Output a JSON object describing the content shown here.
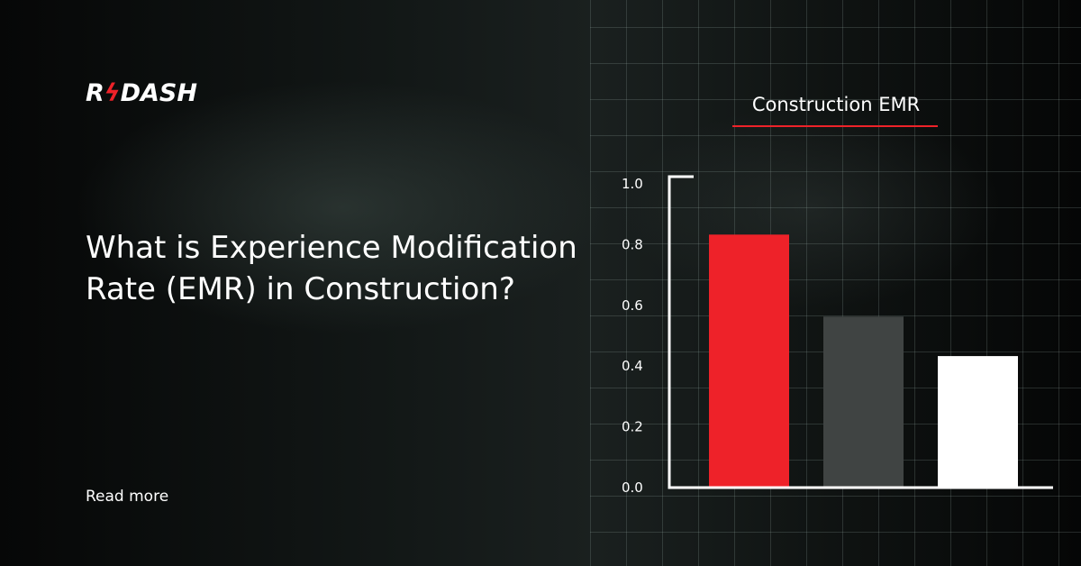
{
  "logo": {
    "text": "R/DASH",
    "prefix": "R",
    "suffix": "DASH"
  },
  "headline": "What is Experience Modification Rate (EMR) in Construction?",
  "cta": "Read more",
  "colors": {
    "accent": "#ee2229",
    "gray_bar": "#404443",
    "white_bar": "#ffffff",
    "background": "#0b0d0d"
  },
  "chart_data": {
    "type": "bar",
    "title": "Construction EMR",
    "categories": [
      "",
      "",
      ""
    ],
    "values": [
      0.83,
      0.56,
      0.43
    ],
    "bar_colors": [
      "#ee2229",
      "#404443",
      "#ffffff"
    ],
    "ylim": [
      0,
      1.0
    ],
    "yticks": [
      "0.0",
      "0.2",
      "0.4",
      "0.6",
      "0.8",
      "1.0"
    ],
    "xlabel": "",
    "ylabel": "",
    "grid": true
  }
}
